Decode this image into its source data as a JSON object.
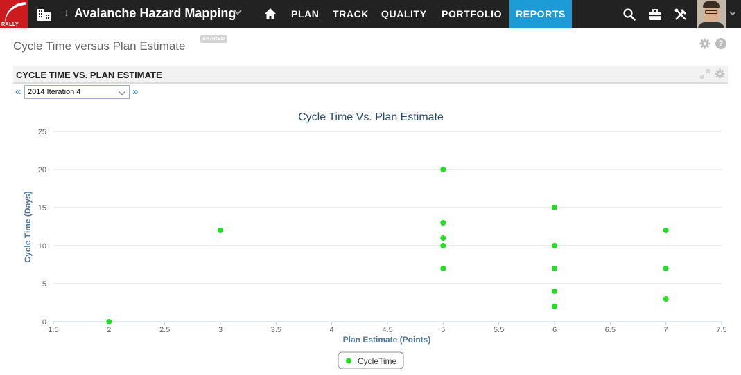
{
  "brand": {
    "logo_text": "RALLY"
  },
  "header": {
    "project_name": "Avalanche Hazard Mapping",
    "nav": [
      {
        "label": "PLAN",
        "active": false
      },
      {
        "label": "TRACK",
        "active": false
      },
      {
        "label": "QUALITY",
        "active": false
      },
      {
        "label": "PORTFOLIO",
        "active": false
      },
      {
        "label": "REPORTS",
        "active": true
      }
    ],
    "icons": [
      "building-icon",
      "home-icon",
      "search-icon",
      "briefcase-icon",
      "tools-icon",
      "avatar"
    ]
  },
  "page": {
    "title": "Cycle Time versus Plan Estimate",
    "badge": "SHARED",
    "help_glyph": "?"
  },
  "panel": {
    "title": "CYCLE TIME VS. PLAN ESTIMATE",
    "prev_glyph": "«",
    "next_glyph": "»",
    "iteration": {
      "selected": "2014 Iteration 4"
    }
  },
  "colors": {
    "nav_bg": "#222222",
    "active_tab": "#1c9bd7",
    "logo": "#cc1b1f",
    "point": "#22dd22"
  },
  "chart_data": {
    "type": "scatter",
    "title": "Cycle Time Vs. Plan Estimate",
    "xlabel": "Plan Estimate (Points)",
    "ylabel": "Cycle Time (Days)",
    "xlim": [
      1.5,
      7.5
    ],
    "ylim": [
      0,
      25
    ],
    "x_ticks": [
      "1.5",
      "2",
      "2.5",
      "3",
      "3.5",
      "4",
      "4.5",
      "5",
      "5.5",
      "6",
      "6.5",
      "7",
      "7.5"
    ],
    "y_ticks": [
      "0",
      "5",
      "10",
      "15",
      "20",
      "25"
    ],
    "grid": "horizontal",
    "legend_position": "bottom",
    "series": [
      {
        "name": "CycleTime",
        "points": [
          [
            2,
            0
          ],
          [
            3,
            12
          ],
          [
            5,
            20
          ],
          [
            5,
            13
          ],
          [
            5,
            11
          ],
          [
            5,
            10
          ],
          [
            5,
            7
          ],
          [
            6,
            15
          ],
          [
            6,
            10
          ],
          [
            6,
            7
          ],
          [
            6,
            4
          ],
          [
            6,
            2
          ],
          [
            7,
            12
          ],
          [
            7,
            7
          ],
          [
            7,
            3
          ]
        ]
      }
    ]
  }
}
